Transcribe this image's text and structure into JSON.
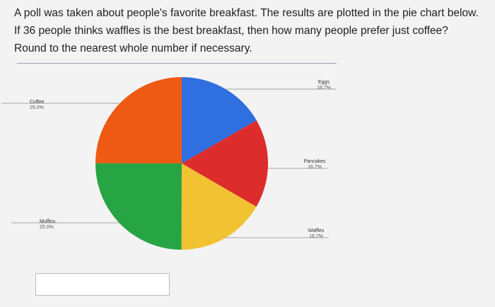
{
  "question": {
    "text": "A poll was taken about people's favorite breakfast. The results are plotted in the pie chart below. If 36 people thinks waffles is the best breakfast, then how many people prefer just coffee? Round to the nearest whole number if necessary."
  },
  "answer": {
    "value": "",
    "placeholder": ""
  },
  "chart_data": {
    "type": "pie",
    "title": "",
    "slices": [
      {
        "name": "Eggs",
        "value": 16.7,
        "label": "16.7%",
        "color": "#2f6fe0"
      },
      {
        "name": "Pancakes",
        "value": 16.7,
        "label": "16.7%",
        "color": "#dd2c2c"
      },
      {
        "name": "Waffles",
        "value": 16.7,
        "label": "16.7%",
        "color": "#f1c232"
      },
      {
        "name": "Muffins",
        "value": 25.0,
        "label": "25.0%",
        "color": "#27a443"
      },
      {
        "name": "Coffee",
        "value": 25.0,
        "label": "25.0%",
        "color": "#ee5a13"
      }
    ],
    "slices_start": "12 o'clock",
    "slices_direction": "clockwise",
    "legend": "none (labels beside slices)"
  }
}
